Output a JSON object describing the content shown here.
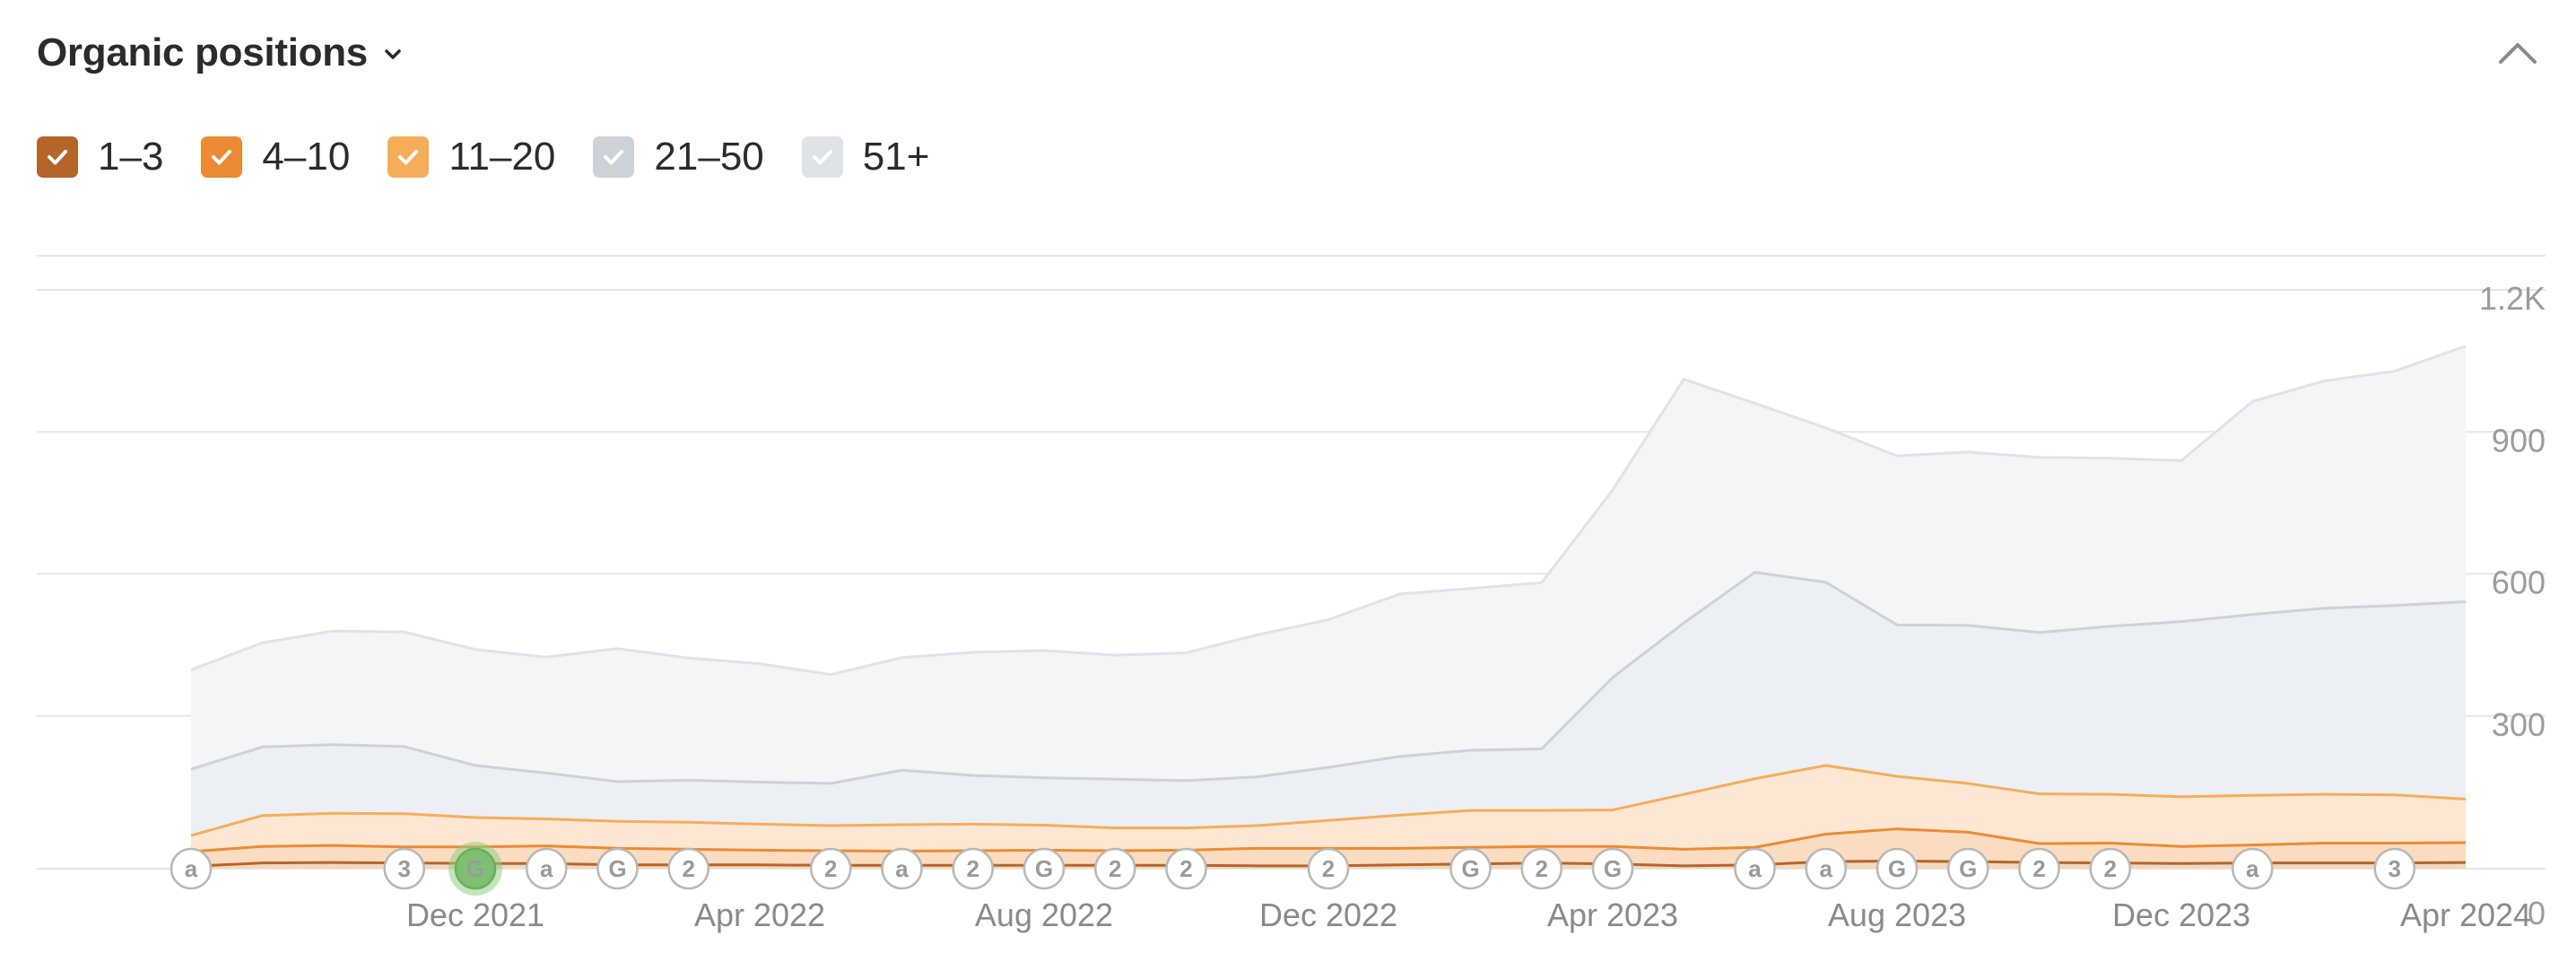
{
  "header": {
    "title": "Organic positions",
    "dropdown_icon": "chevron-down-icon",
    "collapse_icon": "chevron-up-icon"
  },
  "legend": [
    {
      "label": "1–3",
      "color": "#b5652a",
      "checked": true
    },
    {
      "label": "4–10",
      "color": "#ec8a33",
      "checked": true
    },
    {
      "label": "11–20",
      "color": "#f5ad5a",
      "checked": true
    },
    {
      "label": "21–50",
      "color": "#cdd1d8",
      "checked": true
    },
    {
      "label": "51+",
      "color": "#dfe2e7",
      "checked": true
    }
  ],
  "chart_data": {
    "type": "area",
    "stacked": true,
    "x": [
      "2021-08",
      "2021-09",
      "2021-10",
      "2021-11",
      "2021-12",
      "2022-01",
      "2022-02",
      "2022-03",
      "2022-04",
      "2022-05",
      "2022-06",
      "2022-07",
      "2022-08",
      "2022-09",
      "2022-10",
      "2022-11",
      "2022-12",
      "2023-01",
      "2023-02",
      "2023-03",
      "2023-04",
      "2023-05",
      "2023-06",
      "2023-07",
      "2023-08",
      "2023-09",
      "2023-10",
      "2023-11",
      "2023-12",
      "2024-01",
      "2024-02",
      "2024-03",
      "2024-04"
    ],
    "x_tick_labels": [
      "Dec 2021",
      "Apr 2022",
      "Aug 2022",
      "Dec 2022",
      "Apr 2023",
      "Aug 2023",
      "Dec 2023",
      "Apr 2024"
    ],
    "x_tick_positions": [
      "2021-12",
      "2022-04",
      "2022-08",
      "2022-12",
      "2023-04",
      "2023-08",
      "2023-12",
      "2024-04"
    ],
    "y_ticks": [
      0,
      300,
      600,
      900,
      1200
    ],
    "y_tick_labels": [
      "0",
      "300",
      "600",
      "900",
      "1.2K"
    ],
    "ylim": [
      0,
      1200
    ],
    "grid": true,
    "series": [
      {
        "name": "1–3",
        "color": "#b5652a",
        "fill": "#f4d8bd",
        "values": [
          5,
          12,
          13,
          12,
          11,
          11,
          8,
          8,
          8,
          7,
          7,
          7,
          7,
          7,
          7,
          6,
          6,
          8,
          10,
          12,
          10,
          6,
          8,
          15,
          16,
          15,
          13,
          12,
          11,
          12,
          12,
          12,
          13
        ]
      },
      {
        "name": "4–10",
        "color": "#ec8a33",
        "fill": "#fbdcc0",
        "values": [
          31,
          35,
          36,
          34,
          35,
          37,
          35,
          33,
          31,
          31,
          30,
          31,
          32,
          31,
          32,
          37,
          37,
          35,
          35,
          35,
          37,
          35,
          37,
          58,
          68,
          62,
          40,
          42,
          36,
          38,
          42,
          42,
          42
        ]
      },
      {
        "name": "11–20",
        "color": "#f5ad5a",
        "fill": "#fde7d3",
        "values": [
          34,
          65,
          68,
          70,
          62,
          57,
          57,
          57,
          55,
          53,
          56,
          56,
          53,
          48,
          47,
          48,
          59,
          70,
          78,
          76,
          77,
          116,
          145,
          145,
          111,
          103,
          105,
          103,
          105,
          105,
          103,
          102,
          92
        ]
      },
      {
        "name": "21–50",
        "color": "#cdd1d8",
        "fill": "#eceff3",
        "values": [
          140,
          145,
          145,
          142,
          110,
          97,
          84,
          89,
          89,
          89,
          115,
          103,
          100,
          103,
          100,
          103,
          112,
          124,
          127,
          130,
          280,
          362,
          436,
          387,
          320,
          334,
          341,
          355,
          370,
          382,
          393,
          400,
          417
        ]
      },
      {
        "name": "51+",
        "color": "#dfe2e7",
        "fill": "#f4f5f7",
        "values": [
          210,
          220,
          240,
          242,
          245,
          245,
          281,
          258,
          250,
          230,
          238,
          260,
          269,
          262,
          270,
          300,
          312,
          343,
          342,
          351,
          396,
          515,
          357,
          326,
          357,
          366,
          370,
          355,
          340,
          450,
          480,
          495,
          540
        ]
      }
    ],
    "annotations": [
      "a",
      "3",
      "G",
      "a",
      "G",
      "2",
      "2",
      "a",
      "2",
      "G",
      "2",
      "2",
      "2",
      "G",
      "2",
      "G",
      "a",
      "a",
      "G",
      "G",
      "2",
      "2",
      "a",
      "3"
    ],
    "annotation_dates": [
      "2021-08",
      "2021-11",
      "2021-12",
      "2022-01",
      "2022-02",
      "2022-03",
      "2022-05",
      "2022-06",
      "2022-07",
      "2022-08",
      "2022-09",
      "2022-10",
      "2022-12",
      "2023-02",
      "2023-03",
      "2023-04",
      "2023-06",
      "2023-07",
      "2023-08",
      "2023-09",
      "2023-10",
      "2023-11",
      "2024-01",
      "2024-03"
    ],
    "highlighted_annotation": "2021-12"
  }
}
